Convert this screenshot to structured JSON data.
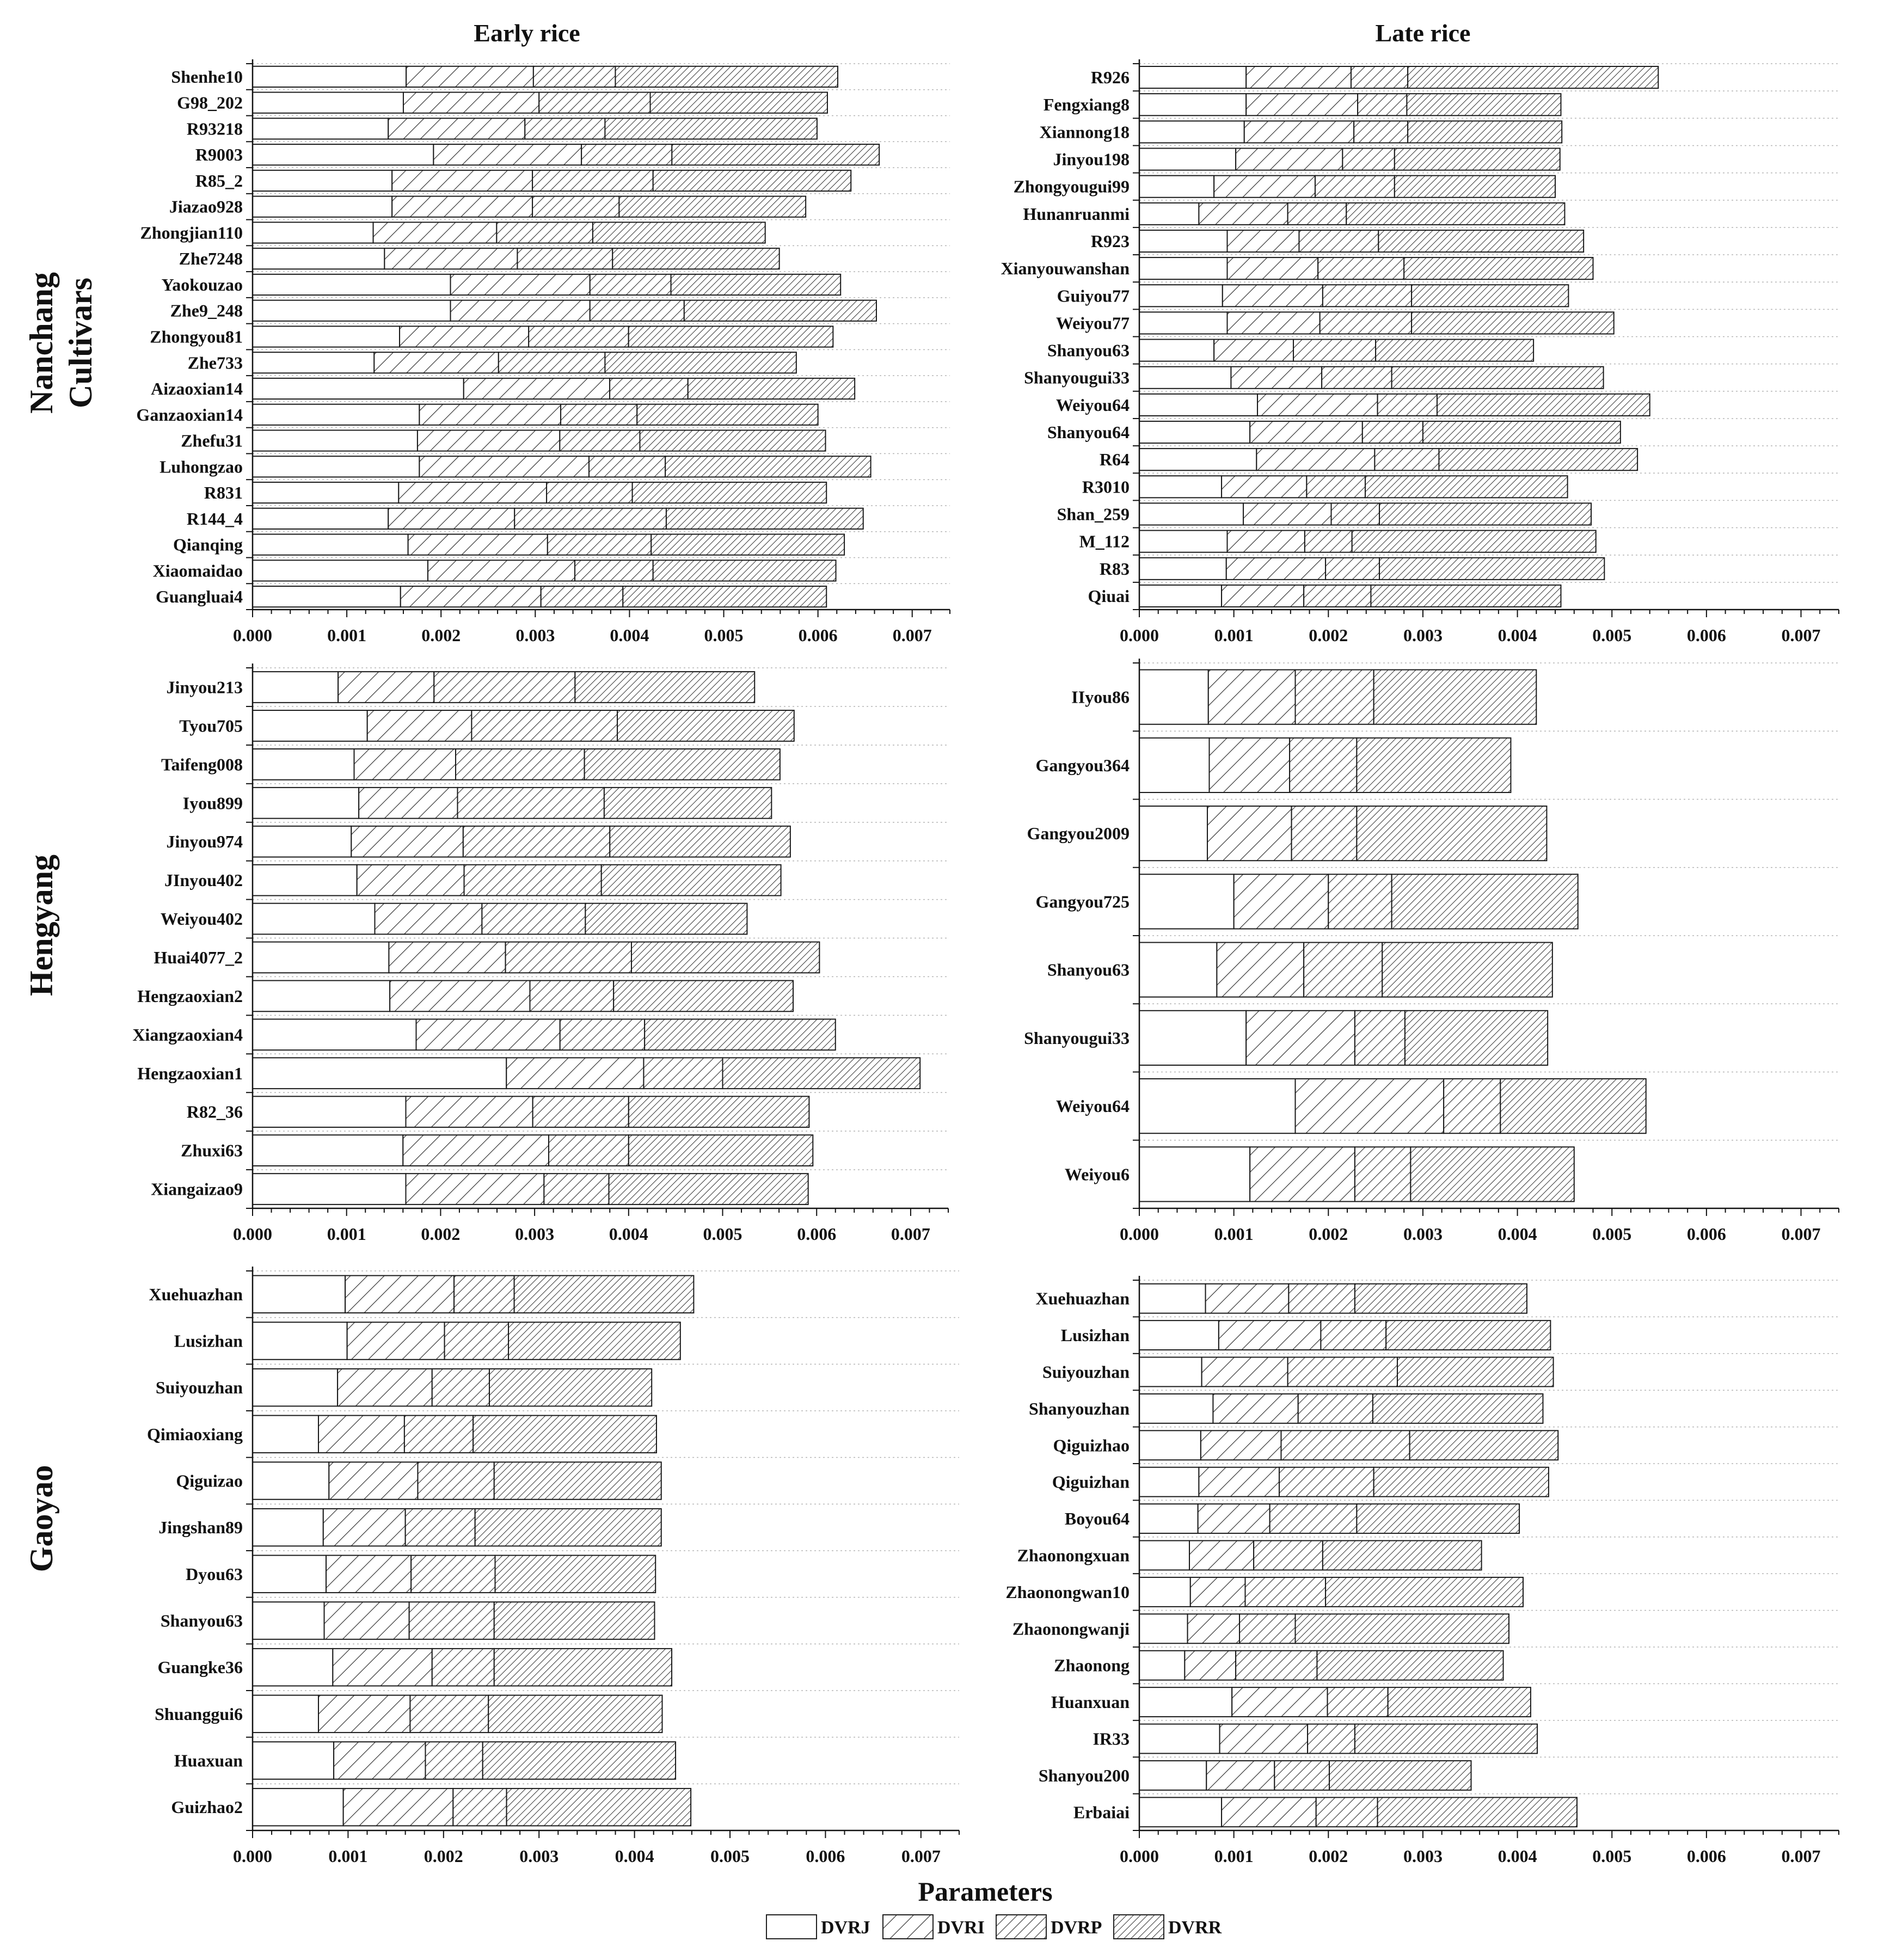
{
  "chart_data": {
    "type": "bar",
    "stacked": true,
    "orientation": "horizontal",
    "column_titles": [
      "Early rice",
      "Late rice"
    ],
    "row_titles": [
      "Nanchang",
      "Hengyang",
      "Gaoyao"
    ],
    "nanchang_extra_label": "Cultivars",
    "xlabel": "Parameters",
    "xlim": [
      0,
      0.0074
    ],
    "xticks": [
      "0.000",
      "0.001",
      "0.002",
      "0.003",
      "0.004",
      "0.005",
      "0.006",
      "0.007"
    ],
    "legend": {
      "position": "bottom-center",
      "entries": [
        "DVRJ",
        "DVRI",
        "DVRP",
        "DVRR"
      ]
    },
    "panels": [
      {
        "id": "nanchang-early",
        "region": "Nanchang",
        "season": "Early rice",
        "categories": [
          "Shenhe10",
          "G98_202",
          "R93218",
          "R9003",
          "R85_2",
          "Jiazao928",
          "Zhongjian110",
          "Zhe7248",
          "Yaokouzao",
          "Zhe9_248",
          "Zhongyou81",
          "Zhe733",
          "Aizaoxian14",
          "Ganzaoxian14",
          "Zhefu31",
          "Luhongzao",
          "R831",
          "R144_4",
          "Qianqing",
          "Xiaomaidao",
          "Guangluai4"
        ],
        "series": [
          {
            "name": "DVRJ",
            "values": [
              0.00163,
              0.0016,
              0.00144,
              0.00192,
              0.00148,
              0.00148,
              0.00128,
              0.0014,
              0.0021,
              0.0021,
              0.00156,
              0.00129,
              0.00224,
              0.00177,
              0.00175,
              0.00177,
              0.00155,
              0.00144,
              0.00165,
              0.00186,
              0.00157
            ]
          },
          {
            "name": "DVRI",
            "values": [
              0.00135,
              0.00144,
              0.00145,
              0.00157,
              0.00149,
              0.00149,
              0.00131,
              0.00141,
              0.00148,
              0.00148,
              0.00137,
              0.00132,
              0.00155,
              0.0015,
              0.00151,
              0.0018,
              0.00157,
              0.00134,
              0.00148,
              0.00156,
              0.00149
            ]
          },
          {
            "name": "DVRP",
            "values": [
              0.00087,
              0.00118,
              0.00085,
              0.00096,
              0.00128,
              0.00092,
              0.00102,
              0.00101,
              0.00086,
              0.001,
              0.00106,
              0.00113,
              0.00083,
              0.00081,
              0.00085,
              0.00081,
              0.00091,
              0.00161,
              0.0011,
              0.00083,
              0.00087
            ]
          },
          {
            "name": "DVRR",
            "values": [
              0.00236,
              0.00188,
              0.00225,
              0.0022,
              0.0021,
              0.00198,
              0.00183,
              0.00177,
              0.0018,
              0.00204,
              0.00217,
              0.00203,
              0.00177,
              0.00192,
              0.00197,
              0.00218,
              0.00206,
              0.00209,
              0.00205,
              0.00194,
              0.00216
            ]
          }
        ]
      },
      {
        "id": "nanchang-late",
        "region": "Nanchang",
        "season": "Late rice",
        "categories": [
          "R926",
          "Fengxiang8",
          "Xiannong18",
          "Jinyou198",
          "Zhongyougui99",
          "Hunanruanmi",
          "R923",
          "Xianyouwanshan",
          "Guiyou77",
          "Weiyou77",
          "Shanyou63",
          "Shanyougui33",
          "Weiyou64",
          "Shanyou64",
          "R64",
          "R3010",
          "Shan_259",
          "M_112",
          "R83",
          "Qiuai"
        ],
        "series": [
          {
            "name": "DVRJ",
            "values": [
              0.00113,
              0.00113,
              0.00111,
              0.00102,
              0.00079,
              0.00063,
              0.00093,
              0.00093,
              0.00088,
              0.00093,
              0.00079,
              0.00097,
              0.00125,
              0.00117,
              0.00124,
              0.00087,
              0.0011,
              0.00093,
              0.00092,
              0.00087
            ]
          },
          {
            "name": "DVRI",
            "values": [
              0.00111,
              0.00118,
              0.00116,
              0.00113,
              0.00107,
              0.00094,
              0.00076,
              0.00096,
              0.00106,
              0.00098,
              0.00084,
              0.00096,
              0.00127,
              0.00119,
              0.00125,
              0.0009,
              0.00093,
              0.00082,
              0.00105,
              0.00087
            ]
          },
          {
            "name": "DVRP",
            "values": [
              0.0006,
              0.00052,
              0.00057,
              0.00055,
              0.00084,
              0.00062,
              0.00084,
              0.00091,
              0.00094,
              0.00097,
              0.00087,
              0.00074,
              0.00063,
              0.00064,
              0.00068,
              0.00062,
              0.00051,
              0.0005,
              0.00057,
              0.00071
            ]
          },
          {
            "name": "DVRR",
            "values": [
              0.00265,
              0.00163,
              0.00163,
              0.00175,
              0.0017,
              0.00231,
              0.00217,
              0.002,
              0.00166,
              0.00214,
              0.00167,
              0.00224,
              0.00225,
              0.00209,
              0.0021,
              0.00214,
              0.00224,
              0.00258,
              0.00238,
              0.00201
            ]
          }
        ]
      },
      {
        "id": "hengyang-early",
        "region": "Hengyang",
        "season": "Early rice",
        "categories": [
          "Jinyou213",
          "Tyou705",
          "Taifeng008",
          "Iyou899",
          "Jinyou974",
          "JInyou402",
          "Weiyou402",
          "Huai4077_2",
          "Hengzaoxian2",
          "Xiangzaoxian4",
          "Hengzaoxian1",
          "R82_36",
          "Zhuxi63",
          "Xiangaizao9"
        ],
        "series": [
          {
            "name": "DVRJ",
            "values": [
              0.00091,
              0.00122,
              0.00108,
              0.00113,
              0.00105,
              0.00111,
              0.0013,
              0.00145,
              0.00146,
              0.00174,
              0.0027,
              0.00163,
              0.0016,
              0.00163
            ]
          },
          {
            "name": "DVRI",
            "values": [
              0.00102,
              0.00111,
              0.00108,
              0.00105,
              0.00119,
              0.00114,
              0.00114,
              0.00124,
              0.00149,
              0.00153,
              0.00146,
              0.00135,
              0.00155,
              0.00147
            ]
          },
          {
            "name": "DVRP",
            "values": [
              0.0015,
              0.00155,
              0.00137,
              0.00156,
              0.00156,
              0.00146,
              0.0011,
              0.00134,
              0.00089,
              0.0009,
              0.00084,
              0.00102,
              0.00085,
              0.00069
            ]
          },
          {
            "name": "DVRR",
            "values": [
              0.00191,
              0.00188,
              0.00208,
              0.00178,
              0.00192,
              0.00191,
              0.00172,
              0.002,
              0.00191,
              0.00203,
              0.0021,
              0.00192,
              0.00196,
              0.00212
            ]
          }
        ]
      },
      {
        "id": "hengyang-late",
        "region": "Hengyang",
        "season": "Late rice",
        "categories": [
          "IIyou86",
          "Gangyou364",
          "Gangyou2009",
          "Gangyou725",
          "Shanyou63",
          "Shanyougui33",
          "Weiyou64",
          "Weiyou6"
        ],
        "series": [
          {
            "name": "DVRJ",
            "values": [
              0.00073,
              0.00074,
              0.00072,
              0.001,
              0.00082,
              0.00113,
              0.00165,
              0.00117
            ]
          },
          {
            "name": "DVRI",
            "values": [
              0.00092,
              0.00085,
              0.00089,
              0.001,
              0.00092,
              0.00115,
              0.00157,
              0.00111
            ]
          },
          {
            "name": "DVRP",
            "values": [
              0.00083,
              0.00071,
              0.00069,
              0.00067,
              0.00083,
              0.00053,
              0.0006,
              0.00059
            ]
          },
          {
            "name": "DVRR",
            "values": [
              0.00172,
              0.00163,
              0.00201,
              0.00197,
              0.0018,
              0.00151,
              0.00154,
              0.00173
            ]
          }
        ]
      },
      {
        "id": "gaoyao-early",
        "region": "Gaoyao",
        "season": "Early rice",
        "categories": [
          "Xuehuazhan",
          "Lusizhan",
          "Suiyouzhan",
          "Qimiaoxiang",
          "Qiguizao",
          "Jingshan89",
          "Dyou63",
          "Shanyou63",
          "Guangke36",
          "Shuanggui6",
          "Huaxuan",
          "Guizhao2"
        ],
        "series": [
          {
            "name": "DVRJ",
            "values": [
              0.00097,
              0.00099,
              0.00089,
              0.00069,
              0.0008,
              0.00074,
              0.00077,
              0.00075,
              0.00084,
              0.00069,
              0.00085,
              0.00095
            ]
          },
          {
            "name": "DVRI",
            "values": [
              0.00114,
              0.00102,
              0.00099,
              0.0009,
              0.00093,
              0.00086,
              0.00089,
              0.00089,
              0.00104,
              0.00096,
              0.00096,
              0.00115
            ]
          },
          {
            "name": "DVRP",
            "values": [
              0.00063,
              0.00067,
              0.0006,
              0.00072,
              0.0008,
              0.00073,
              0.00088,
              0.00089,
              0.00065,
              0.00082,
              0.0006,
              0.00056
            ]
          },
          {
            "name": "DVRR",
            "values": [
              0.00188,
              0.0018,
              0.0017,
              0.00192,
              0.00175,
              0.00195,
              0.00168,
              0.00168,
              0.00186,
              0.00182,
              0.00202,
              0.00193
            ]
          }
        ]
      },
      {
        "id": "gaoyao-late",
        "region": "Gaoyao",
        "season": "Late rice",
        "categories": [
          "Xuehuazhan",
          "Lusizhan",
          "Suiyouzhan",
          "Shanyouzhan",
          "Qiguizhao",
          "Qiguizhan",
          "Boyou64",
          "Zhaonongxuan",
          "Zhaonongwan10",
          "Zhaonongwanji",
          "Zhaonong",
          "Huanxuan",
          "IR33",
          "Shanyou200",
          "Erbaiai"
        ],
        "series": [
          {
            "name": "DVRJ",
            "values": [
              0.0007,
              0.00084,
              0.00066,
              0.00078,
              0.00065,
              0.00063,
              0.00062,
              0.00053,
              0.00054,
              0.00051,
              0.00048,
              0.00098,
              0.00085,
              0.00071,
              0.00087
            ]
          },
          {
            "name": "DVRI",
            "values": [
              0.00088,
              0.00108,
              0.00091,
              0.0009,
              0.00085,
              0.00085,
              0.00076,
              0.00068,
              0.00058,
              0.00055,
              0.00054,
              0.00101,
              0.00093,
              0.00072,
              0.001
            ]
          },
          {
            "name": "DVRP",
            "values": [
              0.0007,
              0.00069,
              0.00116,
              0.00079,
              0.00136,
              0.001,
              0.00092,
              0.00073,
              0.00085,
              0.00059,
              0.00086,
              0.00064,
              0.0005,
              0.00058,
              0.00065
            ]
          },
          {
            "name": "DVRR",
            "values": [
              0.00182,
              0.00174,
              0.00165,
              0.0018,
              0.00157,
              0.00185,
              0.00172,
              0.00168,
              0.00209,
              0.00226,
              0.00197,
              0.00151,
              0.00193,
              0.0015,
              0.00211
            ]
          }
        ]
      }
    ]
  }
}
